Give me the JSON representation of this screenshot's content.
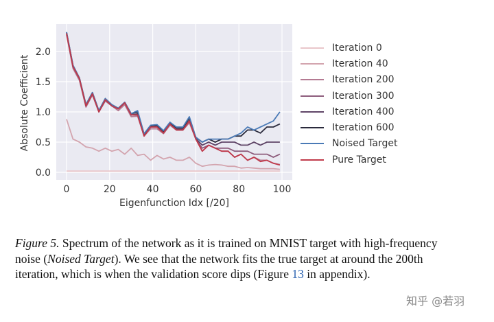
{
  "chart_data": {
    "type": "line",
    "xlabel": "Eigenfunction Idx [/20]",
    "ylabel": "Absolute Coefficient",
    "xlim": [
      -4,
      103
    ],
    "ylim": [
      -0.1,
      2.4
    ],
    "xticks": [
      "0",
      "20",
      "40",
      "60",
      "80",
      "100"
    ],
    "yticks": [
      "0.0",
      "0.5",
      "1.0",
      "1.5",
      "2.0"
    ],
    "grid": true,
    "background": "#eaeaf2",
    "legend_position": "outside-right",
    "x": [
      0,
      3,
      6,
      9,
      12,
      15,
      18,
      21,
      24,
      27,
      30,
      33,
      36,
      39,
      42,
      45,
      48,
      51,
      54,
      57,
      60,
      63,
      66,
      69,
      72,
      75,
      78,
      81,
      84,
      87,
      90,
      93,
      96,
      99
    ],
    "series": [
      {
        "name": "Iteration 0",
        "color": "#e9c6ca",
        "values": [
          0.02,
          0.02,
          0.02,
          0.02,
          0.02,
          0.02,
          0.02,
          0.02,
          0.02,
          0.02,
          0.02,
          0.02,
          0.02,
          0.02,
          0.02,
          0.02,
          0.02,
          0.02,
          0.02,
          0.02,
          0.02,
          0.02,
          0.02,
          0.02,
          0.02,
          0.02,
          0.02,
          0.02,
          0.02,
          0.02,
          0.02,
          0.02,
          0.02,
          0.02
        ]
      },
      {
        "name": "Iteration 40",
        "color": "#d3a4ae",
        "values": [
          0.88,
          0.55,
          0.5,
          0.42,
          0.4,
          0.35,
          0.4,
          0.35,
          0.38,
          0.3,
          0.4,
          0.28,
          0.3,
          0.2,
          0.28,
          0.22,
          0.25,
          0.2,
          0.2,
          0.25,
          0.15,
          0.1,
          0.12,
          0.13,
          0.12,
          0.1,
          0.1,
          0.07,
          0.08,
          0.07,
          0.06,
          0.06,
          0.06,
          0.05
        ]
      },
      {
        "name": "Iteration 200",
        "color": "#b47a92",
        "values": [
          2.28,
          1.72,
          1.52,
          1.08,
          1.28,
          1.0,
          1.18,
          1.1,
          1.02,
          1.12,
          0.92,
          0.93,
          0.6,
          0.72,
          0.72,
          0.64,
          0.78,
          0.7,
          0.7,
          0.82,
          0.55,
          0.35,
          0.45,
          0.4,
          0.35,
          0.35,
          0.25,
          0.3,
          0.2,
          0.25,
          0.2,
          0.2,
          0.15,
          0.13
        ]
      },
      {
        "name": "Iteration 300",
        "color": "#8d5c7c",
        "values": [
          2.3,
          1.75,
          1.55,
          1.1,
          1.3,
          1.0,
          1.2,
          1.1,
          1.05,
          1.15,
          0.95,
          0.95,
          0.6,
          0.75,
          0.75,
          0.65,
          0.8,
          0.7,
          0.7,
          0.85,
          0.55,
          0.4,
          0.45,
          0.4,
          0.4,
          0.4,
          0.35,
          0.35,
          0.35,
          0.3,
          0.3,
          0.3,
          0.25,
          0.3
        ]
      },
      {
        "name": "Iteration 400",
        "color": "#5e4466",
        "values": [
          2.3,
          1.75,
          1.55,
          1.1,
          1.3,
          1.0,
          1.2,
          1.1,
          1.05,
          1.15,
          0.95,
          0.97,
          0.62,
          0.75,
          0.76,
          0.66,
          0.8,
          0.72,
          0.72,
          0.86,
          0.56,
          0.45,
          0.5,
          0.45,
          0.5,
          0.5,
          0.5,
          0.45,
          0.45,
          0.5,
          0.45,
          0.5,
          0.5,
          0.5
        ]
      },
      {
        "name": "Iteration 600",
        "color": "#2a2a3c",
        "values": [
          2.32,
          1.77,
          1.56,
          1.12,
          1.32,
          1.02,
          1.22,
          1.12,
          1.06,
          1.16,
          0.97,
          1.0,
          0.63,
          0.77,
          0.78,
          0.68,
          0.82,
          0.74,
          0.74,
          0.9,
          0.58,
          0.5,
          0.55,
          0.5,
          0.55,
          0.55,
          0.6,
          0.6,
          0.7,
          0.7,
          0.65,
          0.75,
          0.75,
          0.8
        ]
      },
      {
        "name": "Noised Target",
        "color": "#4a7ab6",
        "values": [
          2.32,
          1.77,
          1.56,
          1.12,
          1.32,
          1.02,
          1.22,
          1.12,
          1.06,
          1.16,
          0.97,
          1.02,
          0.64,
          0.78,
          0.79,
          0.69,
          0.83,
          0.75,
          0.75,
          0.92,
          0.58,
          0.5,
          0.55,
          0.55,
          0.55,
          0.55,
          0.6,
          0.65,
          0.75,
          0.7,
          0.75,
          0.8,
          0.85,
          1.0
        ]
      },
      {
        "name": "Pure Target",
        "color": "#c0394a",
        "values": [
          2.3,
          1.75,
          1.55,
          1.1,
          1.3,
          1.0,
          1.2,
          1.1,
          1.05,
          1.15,
          0.95,
          0.95,
          0.6,
          0.75,
          0.75,
          0.65,
          0.8,
          0.7,
          0.7,
          0.85,
          0.55,
          0.35,
          0.45,
          0.4,
          0.35,
          0.35,
          0.25,
          0.3,
          0.2,
          0.25,
          0.18,
          0.2,
          0.15,
          0.12
        ]
      }
    ]
  },
  "caption": {
    "figure_label": "Figure 5.",
    "text1": " Spectrum of the network as it is trained on MNIST target with high-frequency noise (",
    "noised_term": "Noised Target",
    "text2": "). We see that the network fits the true target at around the 200th iteration, which is when the validation score dips (Figure ",
    "figure_ref": "13",
    "text3": " in appendix)."
  },
  "watermark": "知乎 @若羽"
}
